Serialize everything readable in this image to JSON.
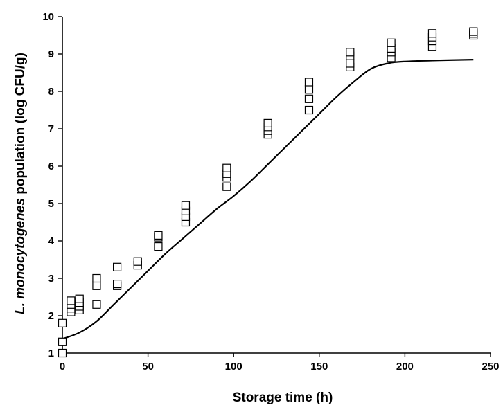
{
  "chart_data": {
    "type": "scatter",
    "title": "",
    "xlabel": "Storage time (h)",
    "ylabel_italic": "L. monocytogenes",
    "ylabel_rest": " population (log CFU/g)",
    "xlim": [
      0,
      250
    ],
    "ylim": [
      1,
      10
    ],
    "xticks": [
      0,
      50,
      100,
      150,
      200,
      250
    ],
    "yticks": [
      1,
      2,
      3,
      4,
      5,
      6,
      7,
      8,
      9,
      10
    ],
    "grid": false,
    "legend": "none",
    "series": [
      {
        "type": "scatter",
        "marker": "open-square",
        "points": [
          [
            0,
            1.0
          ],
          [
            0,
            1.3
          ],
          [
            0,
            1.8
          ],
          [
            5,
            2.1
          ],
          [
            5,
            2.2
          ],
          [
            5,
            2.3
          ],
          [
            5,
            2.4
          ],
          [
            10,
            2.15
          ],
          [
            10,
            2.25
          ],
          [
            10,
            2.35
          ],
          [
            10,
            2.45
          ],
          [
            20,
            2.3
          ],
          [
            20,
            2.8
          ],
          [
            20,
            3.0
          ],
          [
            32,
            2.8
          ],
          [
            32,
            2.85
          ],
          [
            32,
            3.3
          ],
          [
            44,
            3.35
          ],
          [
            44,
            3.45
          ],
          [
            56,
            3.85
          ],
          [
            56,
            4.1
          ],
          [
            56,
            4.15
          ],
          [
            72,
            4.5
          ],
          [
            72,
            4.65
          ],
          [
            72,
            4.8
          ],
          [
            72,
            4.95
          ],
          [
            96,
            5.45
          ],
          [
            96,
            5.7
          ],
          [
            96,
            5.8
          ],
          [
            96,
            5.95
          ],
          [
            120,
            6.85
          ],
          [
            120,
            6.95
          ],
          [
            120,
            7.05
          ],
          [
            120,
            7.15
          ],
          [
            144,
            7.5
          ],
          [
            144,
            7.8
          ],
          [
            144,
            8.05
          ],
          [
            144,
            8.25
          ],
          [
            168,
            8.65
          ],
          [
            168,
            8.75
          ],
          [
            168,
            8.95
          ],
          [
            168,
            9.05
          ],
          [
            192,
            8.9
          ],
          [
            192,
            9.05
          ],
          [
            192,
            9.15
          ],
          [
            192,
            9.3
          ],
          [
            216,
            9.2
          ],
          [
            216,
            9.35
          ],
          [
            216,
            9.45
          ],
          [
            216,
            9.55
          ],
          [
            240,
            9.5
          ],
          [
            240,
            9.55
          ],
          [
            240,
            9.6
          ]
        ]
      },
      {
        "type": "line",
        "points": [
          [
            0,
            1.38
          ],
          [
            10,
            1.55
          ],
          [
            20,
            1.85
          ],
          [
            30,
            2.3
          ],
          [
            40,
            2.75
          ],
          [
            50,
            3.2
          ],
          [
            60,
            3.65
          ],
          [
            70,
            4.05
          ],
          [
            80,
            4.45
          ],
          [
            90,
            4.85
          ],
          [
            100,
            5.2
          ],
          [
            110,
            5.6
          ],
          [
            120,
            6.05
          ],
          [
            130,
            6.5
          ],
          [
            140,
            6.95
          ],
          [
            150,
            7.4
          ],
          [
            160,
            7.85
          ],
          [
            170,
            8.25
          ],
          [
            180,
            8.6
          ],
          [
            190,
            8.75
          ],
          [
            200,
            8.8
          ],
          [
            220,
            8.83
          ],
          [
            240,
            8.85
          ]
        ]
      }
    ]
  }
}
